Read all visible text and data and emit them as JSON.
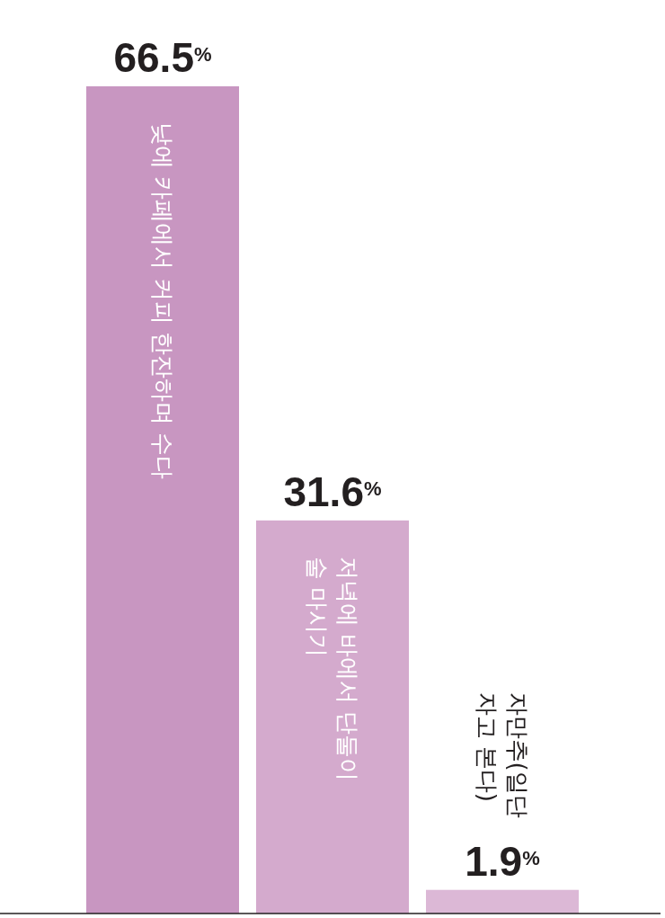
{
  "chart_data": {
    "type": "bar",
    "categories": [
      "낮에 카페에서 커피 한잔하며 수다",
      "저녁에 바에서 단둘이\n술 마시기",
      "자만추(일단\n자고 본다)"
    ],
    "values": [
      66.5,
      31.6,
      1.9
    ],
    "colors": [
      "#c896c1",
      "#d4aacd",
      "#dcb8d6"
    ],
    "value_labels": [
      "66.5$^{%}$",
      "31.6$^{%}$",
      "1.9$^{%}$"
    ]
  }
}
